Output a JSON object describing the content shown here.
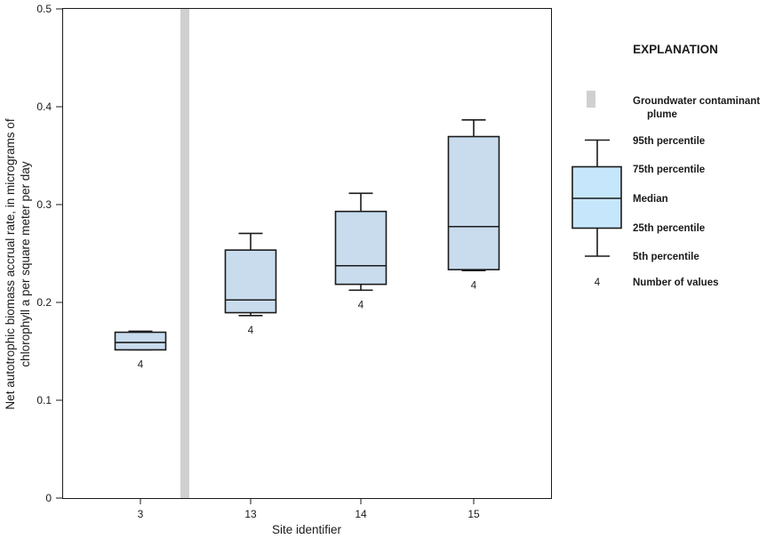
{
  "chart_data": {
    "type": "box",
    "xlabel": "Site identifier",
    "ylabel_lines": [
      "Net autotrophic biomass accrual rate, in micrograms of",
      "chlorophyll a per square meter per day"
    ],
    "ylim": [
      0,
      0.5
    ],
    "yticks": [
      "0",
      "0.1",
      "0.2",
      "0.3",
      "0.4",
      "0.5"
    ],
    "grid": false,
    "legend_position": "right",
    "colors": {
      "box_fill": "#c8dcee",
      "legend_box_fill": "#c6e7fb",
      "plume": "#d0d0d0",
      "stroke": "#1a1a1a"
    },
    "sites": [
      {
        "label": "3",
        "p5": 0.1515,
        "p25": 0.1515,
        "median": 0.159,
        "p75": 0.1695,
        "p95": 0.1705,
        "n": "4"
      },
      {
        "label": "13",
        "p5": 0.1865,
        "p25": 0.1895,
        "median": 0.2025,
        "p75": 0.2535,
        "p95": 0.2705,
        "n": "4"
      },
      {
        "label": "14",
        "p5": 0.2125,
        "p25": 0.2185,
        "median": 0.2375,
        "p75": 0.293,
        "p95": 0.3115,
        "n": "4"
      },
      {
        "label": "15",
        "p5": 0.2325,
        "p25": 0.2335,
        "median": 0.2775,
        "p75": 0.3695,
        "p95": 0.3865,
        "n": "4"
      }
    ],
    "plume_after_site_index": 0,
    "legend": {
      "title": "EXPLANATION",
      "plume_line1": "Groundwater contaminant",
      "plume_line2": "plume",
      "p95": "95th percentile",
      "p75": "75th percentile",
      "median": "Median",
      "p25": "25th percentile",
      "p5": "5th percentile",
      "count_symbol": "4",
      "count_label": "Number of values"
    }
  }
}
